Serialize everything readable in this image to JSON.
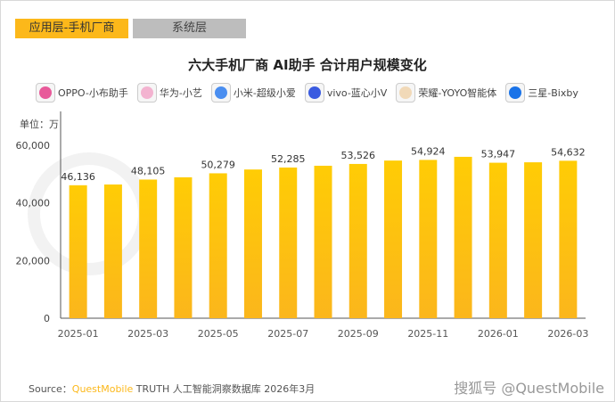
{
  "tabs": [
    {
      "label": "应用层-手机厂商",
      "active": true
    },
    {
      "label": "系统层",
      "active": false
    }
  ],
  "chart_data": {
    "type": "bar",
    "title": "六大手机厂商 AI助手 合计用户规模变化",
    "ylabel": "单位：万",
    "categories": [
      "2025-01",
      "2025-02",
      "2025-03",
      "2025-04",
      "2025-05",
      "2025-06",
      "2025-07",
      "2025-08",
      "2025-09",
      "2025-10",
      "2025-11",
      "2025-12",
      "2026-01",
      "2026-02",
      "2026-03"
    ],
    "values": [
      46136,
      46400,
      48105,
      48900,
      50279,
      51600,
      52285,
      52900,
      53526,
      54700,
      54924,
      56000,
      53947,
      54100,
      54632
    ],
    "data_labels": [
      "46,136",
      "",
      "48,105",
      "",
      "50,279",
      "",
      "52,285",
      "",
      "53,526",
      "",
      "54,924",
      "",
      "53,947",
      "",
      "54,632"
    ],
    "x_tick_labels": [
      "2025-01",
      "",
      "2025-03",
      "",
      "2025-05",
      "",
      "2025-07",
      "",
      "2025-09",
      "",
      "2025-11",
      "",
      "2026-01",
      "",
      "2026-03"
    ],
    "y_ticks": [
      0,
      20000,
      40000,
      60000
    ],
    "y_tick_labels": [
      "0",
      "20,000",
      "40,000",
      "60,000"
    ],
    "ylim": [
      0,
      60000
    ],
    "grid": false,
    "legend_placement": "top",
    "bar_color": "#fcc00f"
  },
  "legend": [
    {
      "label": "OPPO-小布助手",
      "icon": "oppo-xiaobu-icon",
      "color": "#e85a9a"
    },
    {
      "label": "华为-小艺",
      "icon": "huawei-xiaoyi-icon",
      "color": "#f3b3d0"
    },
    {
      "label": "小米-超级小爱",
      "icon": "xiaomi-xiaoai-icon",
      "color": "#4a8ef0"
    },
    {
      "label": "vivo-蓝心小V",
      "icon": "vivo-lanxin-icon",
      "color": "#3a5be0"
    },
    {
      "label": "荣耀-YOYO智能体",
      "icon": "honor-yoyo-icon",
      "color": "#f1d9b8"
    },
    {
      "label": "三星-Bixby",
      "icon": "samsung-bixby-icon",
      "color": "#1a73e8"
    }
  ],
  "source": {
    "prefix": "Source：",
    "brand": "QuestMobile",
    "text": " TRUTH 人工智能洞察数据库 2026年3月"
  },
  "watermark": "搜狐号 @QuestMobile"
}
